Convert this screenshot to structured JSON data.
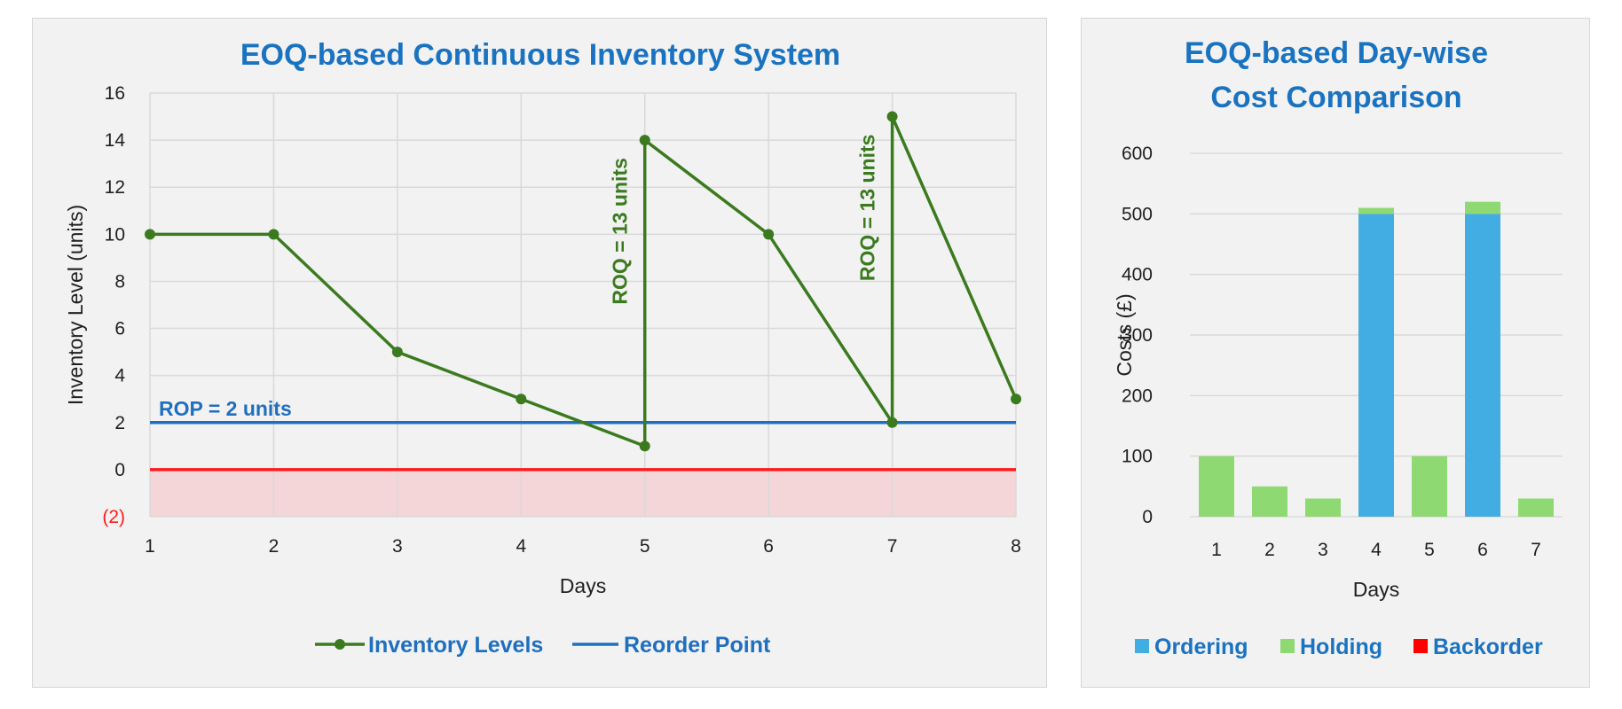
{
  "chart_data": [
    {
      "type": "line",
      "title": "EOQ-based Continuous Inventory System",
      "xlabel": "Days",
      "ylabel": "Inventory Level (units)",
      "x_ticks": [
        "1",
        "2",
        "3",
        "4",
        "5",
        "6",
        "7",
        "8"
      ],
      "y_ticks": [
        "(2)",
        "0",
        "2",
        "4",
        "6",
        "8",
        "10",
        "12",
        "14",
        "16"
      ],
      "xlim": [
        1,
        8
      ],
      "ylim": [
        -2,
        16
      ],
      "grid": true,
      "legend_position": "bottom",
      "series": [
        {
          "name": "Inventory Levels",
          "color": "#3b7a1e",
          "points": [
            {
              "x": 1,
              "y": 10
            },
            {
              "x": 2,
              "y": 10
            },
            {
              "x": 3,
              "y": 5
            },
            {
              "x": 4,
              "y": 3
            },
            {
              "x": 5,
              "y": 1
            },
            {
              "x": 5,
              "y": 14
            },
            {
              "x": 6,
              "y": 10
            },
            {
              "x": 7,
              "y": 2
            },
            {
              "x": 7,
              "y": 15
            },
            {
              "x": 8,
              "y": 3
            }
          ],
          "markers": [
            {
              "x": 1,
              "y": 10
            },
            {
              "x": 2,
              "y": 10
            },
            {
              "x": 3,
              "y": 5
            },
            {
              "x": 4,
              "y": 3
            },
            {
              "x": 5,
              "y": 1
            },
            {
              "x": 5,
              "y": 14
            },
            {
              "x": 6,
              "y": 10
            },
            {
              "x": 7,
              "y": 2
            },
            {
              "x": 7,
              "y": 15
            },
            {
              "x": 8,
              "y": 3
            }
          ]
        },
        {
          "name": "Reorder Point",
          "color": "#1f6fbf",
          "value": 2
        }
      ],
      "zero_line": {
        "value": 0,
        "color": "#ff1a1a"
      },
      "backorder_region": {
        "from": -2,
        "to": 0,
        "color": "#f4d6d9"
      },
      "annotations": {
        "rop": {
          "text": "ROP = 2 units",
          "x": 1,
          "y": 2
        },
        "roq": [
          {
            "text": "ROQ = 13 units",
            "x": 5,
            "y": 14
          },
          {
            "text": "ROQ = 13 units",
            "x": 7,
            "y": 15
          }
        ]
      }
    },
    {
      "type": "bar",
      "stacked": true,
      "title": [
        "EOQ-based Day-wise",
        "Cost Comparison"
      ],
      "xlabel": "Days",
      "ylabel": "Costs (£)",
      "categories": [
        "1",
        "2",
        "3",
        "4",
        "5",
        "6",
        "7"
      ],
      "y_ticks": [
        "0",
        "100",
        "200",
        "300",
        "400",
        "500",
        "600"
      ],
      "ylim": [
        0,
        600
      ],
      "grid": true,
      "legend_position": "bottom",
      "series": [
        {
          "name": "Ordering",
          "color": "#41ade3",
          "values": [
            0,
            0,
            0,
            500,
            0,
            500,
            0
          ]
        },
        {
          "name": "Holding",
          "color": "#8fd973",
          "values": [
            100,
            50,
            30,
            10,
            100,
            20,
            30
          ]
        },
        {
          "name": "Backorder",
          "color": "#ff0000",
          "values": [
            0,
            0,
            0,
            0,
            0,
            0,
            0
          ]
        }
      ]
    }
  ]
}
